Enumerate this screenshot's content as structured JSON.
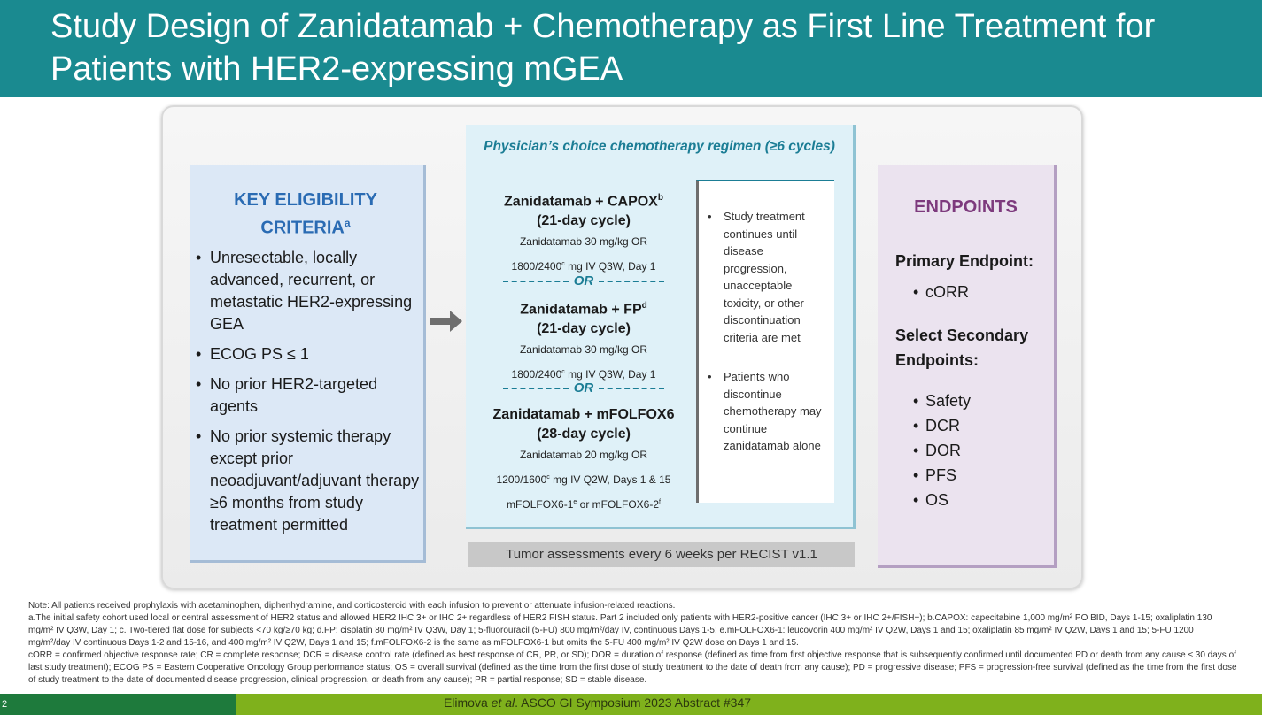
{
  "slide": {
    "title": "Study Design of Zanidatamab + Chemotherapy as First Line Treatment for Patients with HER2-expressing mGEA"
  },
  "eligibility": {
    "heading": "KEY ELIGIBILITY CRITERIA",
    "heading_sup": "a",
    "items": [
      "Unresectable, locally advanced, recurrent, or metastatic HER2-expressing GEA",
      "ECOG PS ≤ 1",
      "No prior HER2-targeted agents",
      "No prior systemic therapy except prior neoadjuvant/adjuvant therapy ≥6 months from study treatment permitted"
    ]
  },
  "regimen": {
    "heading": "Physician’s choice chemotherapy regimen (≥6 cycles)",
    "or_label": "OR",
    "arms": [
      {
        "name": "Zanidatamab + CAPOX",
        "sup": "b",
        "cycle": "(21-day cycle)",
        "dose1": "Zanidatamab 30 mg/kg OR",
        "dose2_pre": "1800/2400",
        "dose2_sup": "c",
        "dose2_post": " mg IV Q3W, Day 1"
      },
      {
        "name": "Zanidatamab + FP",
        "sup": "d",
        "cycle": "(21-day cycle)",
        "dose1": "Zanidatamab 30 mg/kg OR",
        "dose2_pre": "1800/2400",
        "dose2_sup": "c",
        "dose2_post": " mg IV Q3W, Day 1"
      },
      {
        "name": "Zanidatamab + mFOLFOX6",
        "cycle": "(28-day cycle)",
        "dose1": "Zanidatamab 20 mg/kg OR",
        "dose2_pre": "1200/1600",
        "dose2_sup": "c",
        "dose2_post": " mg IV Q2W, Days 1 & 15",
        "dose3_a": "mFOLFOX6-1",
        "dose3_a_sup": "e",
        "dose3_mid": " or mFOLFOX6-2",
        "dose3_b_sup": "f"
      }
    ],
    "notes": [
      "Study treatment continues until disease progression, unacceptable toxicity, or other discontinuation criteria are met",
      "Patients who discontinue chemotherapy may continue zanidatamab alone"
    ],
    "tumor_assessment": "Tumor assessments every 6 weeks per RECIST v1.1"
  },
  "endpoints": {
    "heading": "ENDPOINTS",
    "primary_label": "Primary Endpoint:",
    "primary": [
      "cORR"
    ],
    "secondary_label": "Select Secondary Endpoints:",
    "secondary": [
      "Safety",
      "DCR",
      "DOR",
      "PFS",
      "OS"
    ]
  },
  "footnotes": {
    "note": "Note: All patients received prophylaxis with acetaminophen, diphenhydramine, and corticosteroid with each infusion to prevent or attenuate infusion-related reactions.",
    "a": "a.The initial safety cohort used local or central assessment of HER2 status and allowed HER2 IHC 3+ or IHC 2+ regardless of HER2 FISH status. Part 2 included only patients with HER2-positive cancer (IHC 3+ or IHC 2+/FISH+); b.CAPOX: capecitabine 1,000 mg/m² PO BID, Days 1-15; oxaliplatin 130 mg/m² IV Q3W, Day 1; c. Two-tiered flat dose for subjects <70 kg/≥70 kg; d.FP: cisplatin 80 mg/m² IV Q3W, Day 1; 5-fluorouracil (5-FU) 800 mg/m²/day IV, continuous Days 1-5; e.mFOLFOX6-1: leucovorin 400 mg/m² IV Q2W, Days 1 and 15; oxaliplatin 85 mg/m² IV Q2W, Days 1 and 15; 5-FU 1200 mg/m²/day IV continuous Days 1-2 and 15-16, and 400 mg/m² IV Q2W, Days 1 and 15; f.mFOLFOX6-2 is the same as mFOLFOX6-1 but omits the 5-FU 400 mg/m² IV Q2W dose on Days 1 and 15.",
    "abbrev": "cORR = confirmed objective response rate; CR = complete response; DCR = disease control rate (defined as best response of CR, PR, or SD); DOR = duration of response (defined as time from first objective response that is subsequently confirmed until documented PD or death from any cause ≤ 30 days of last study treatment); ECOG PS = Eastern Cooperative Oncology Group performance status; OS = overall survival (defined as the time from the first dose of study treatment to the date of death from any cause); PD = progressive disease; PFS = progression-free survival (defined as the time from the first dose of study treatment to the date of documented disease progression, clinical progression, or death from any cause); PR = partial response; SD = stable disease."
  },
  "footer": {
    "page_number": "2",
    "cite_pre": "Elimova ",
    "cite_em": "et al",
    "cite_post": ". ASCO GI Symposium 2023 Abstract #347"
  },
  "colors": {
    "title_bar": "#1a8a90",
    "eligibility_heading": "#2a6bb3",
    "regimen_accent": "#1b7d95",
    "endpoints_heading": "#7d3a7d",
    "footer_green": "#7fb11c",
    "footer_dark": "#1e7a3c"
  }
}
